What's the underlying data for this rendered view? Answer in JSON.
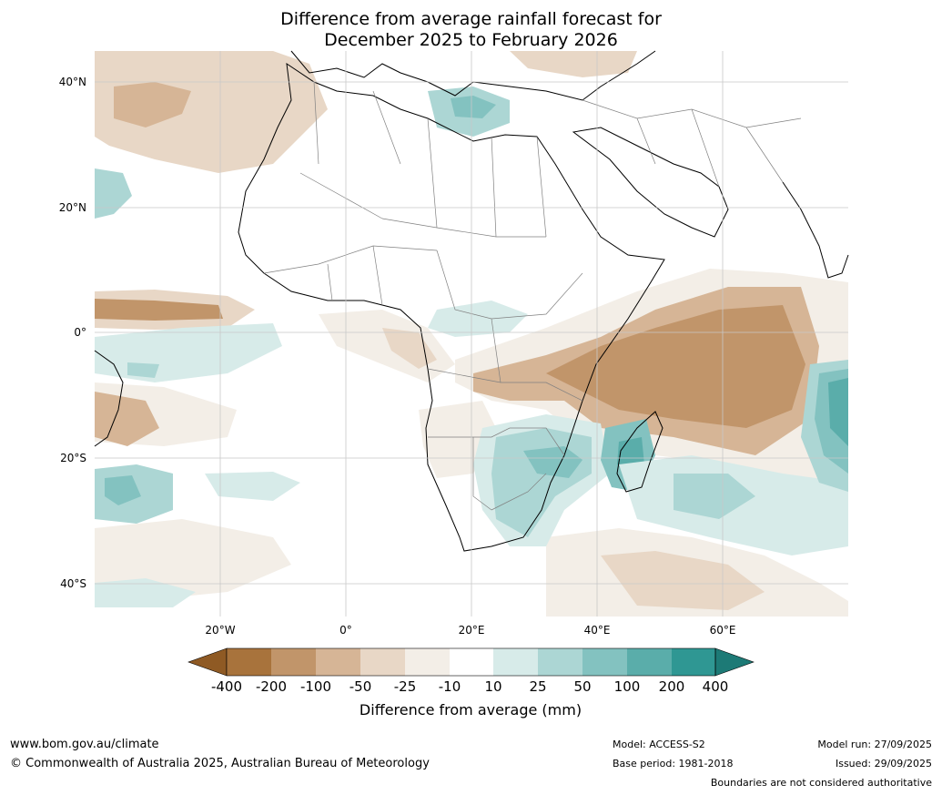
{
  "title_line1": "Difference from average rainfall forecast for",
  "title_line2": "December 2025 to February 2026",
  "map": {
    "lat_labels": [
      "40°N",
      "20°N",
      "0°",
      "20°S",
      "40°S"
    ],
    "lon_labels": [
      "20°W",
      "0°",
      "20°E",
      "40°E",
      "60°E"
    ]
  },
  "colorbar": {
    "title": "Difference from average (mm)",
    "tick_labels": [
      "-400",
      "-200",
      "-100",
      "-50",
      "-25",
      "-10",
      "10",
      "25",
      "50",
      "100",
      "200",
      "400"
    ],
    "colors": {
      "lt_minus400": "#8f5a24",
      "c1": "#a8733c",
      "c2": "#c1956a",
      "c3": "#d6b596",
      "c4": "#e8d7c6",
      "c5": "#f3eee7",
      "c6": "#ffffff",
      "c7": "#d7ebe9",
      "c8": "#acd6d4",
      "c9": "#83c2c0",
      "c10": "#5aadaa",
      "c11": "#2f9793",
      "gt_400": "#1d7a76"
    }
  },
  "footer": {
    "website": "www.bom.gov.au/climate",
    "copyright": "© Commonwealth of Australia 2025, Australian Bureau of Meteorology",
    "model": "Model: ACCESS-S2",
    "base_period": "Base period: 1981-2018",
    "model_run": "Model run: 27/09/2025",
    "issued": "Issued: 29/09/2025",
    "disclaimer": "Boundaries are not considered authoritative"
  }
}
